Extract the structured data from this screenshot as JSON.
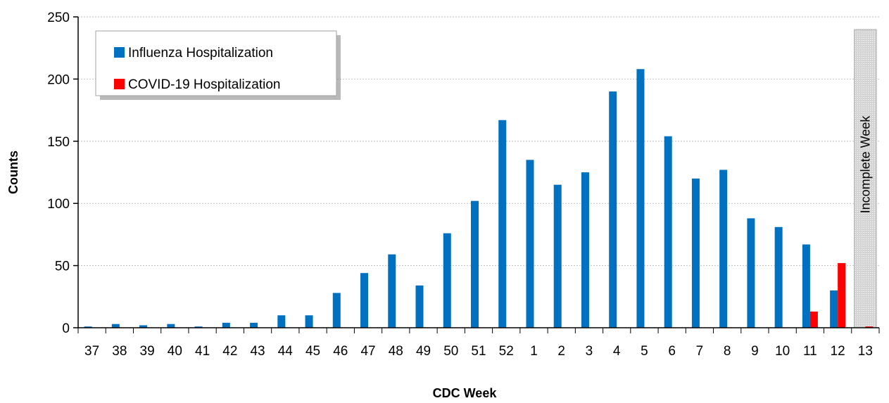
{
  "chart_data": {
    "type": "bar",
    "xlabel": "CDC Week",
    "ylabel": "Counts",
    "ylim": [
      0,
      250
    ],
    "yticks": [
      0,
      50,
      100,
      150,
      200,
      250
    ],
    "grid": "horizontal dotted",
    "legend_position": "top-left",
    "categories": [
      "37",
      "38",
      "39",
      "40",
      "41",
      "42",
      "43",
      "44",
      "45",
      "46",
      "47",
      "48",
      "49",
      "50",
      "51",
      "52",
      "1",
      "2",
      "3",
      "4",
      "5",
      "6",
      "7",
      "8",
      "9",
      "10",
      "11",
      "12",
      "13"
    ],
    "series": [
      {
        "name": "Influenza Hospitalization",
        "color": "#0070C0",
        "values": [
          1,
          3,
          2,
          3,
          1,
          4,
          4,
          10,
          10,
          28,
          44,
          59,
          34,
          76,
          102,
          167,
          135,
          115,
          125,
          190,
          208,
          154,
          120,
          127,
          88,
          81,
          67,
          30,
          0
        ]
      },
      {
        "name": "COVID-19 Hospitalization",
        "color": "#FF0000",
        "values": [
          0,
          0,
          0,
          0,
          0,
          0,
          0,
          0,
          0,
          0,
          0,
          0,
          0,
          0,
          0,
          0,
          0,
          0,
          0,
          0,
          0,
          0,
          0,
          0,
          0,
          0,
          13,
          52,
          1
        ]
      }
    ],
    "annotation": {
      "text": "Incomplete Week",
      "category": "13"
    }
  }
}
